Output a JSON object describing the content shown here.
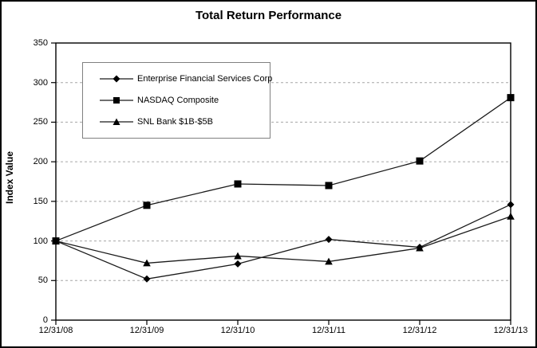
{
  "title": "Total Return Performance",
  "y_axis_title": "Index Value",
  "colors": {
    "line": "#1a1a1a",
    "grid": "#a6a6a6",
    "frame": "#000000",
    "legend_border": "#808080",
    "background": "#ffffff"
  },
  "legend": {
    "items": [
      {
        "label": "Enterprise Financial Services Corp",
        "marker": "diamond"
      },
      {
        "label": "NASDAQ Composite",
        "marker": "square"
      },
      {
        "label": "SNL Bank $1B-$5B",
        "marker": "triangle"
      }
    ]
  },
  "chart_data": {
    "type": "line",
    "title": "Total Return Performance",
    "xlabel": "",
    "ylabel": "Index Value",
    "categories": [
      "12/31/08",
      "12/31/09",
      "12/31/10",
      "12/31/11",
      "12/31/12",
      "12/31/13"
    ],
    "series": [
      {
        "name": "Enterprise Financial Services Corp",
        "marker": "diamond",
        "values": [
          100,
          52,
          71,
          102,
          92,
          146
        ]
      },
      {
        "name": "NASDAQ Composite",
        "marker": "square",
        "values": [
          100,
          145,
          172,
          170,
          201,
          281
        ]
      },
      {
        "name": "SNL Bank $1B-$5B",
        "marker": "triangle",
        "values": [
          100,
          72,
          81,
          74,
          91,
          131
        ]
      }
    ],
    "ylim": [
      0,
      350
    ],
    "ytick_step": 50,
    "grid": "horizontal-dashed",
    "legend_position": "upper-left-inside",
    "line_color": "#1a1a1a"
  }
}
